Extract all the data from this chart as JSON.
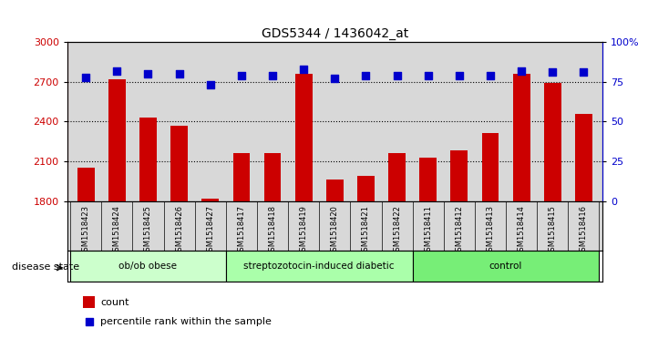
{
  "title": "GDS5344 / 1436042_at",
  "samples": [
    "GSM1518423",
    "GSM1518424",
    "GSM1518425",
    "GSM1518426",
    "GSM1518427",
    "GSM1518417",
    "GSM1518418",
    "GSM1518419",
    "GSM1518420",
    "GSM1518421",
    "GSM1518422",
    "GSM1518411",
    "GSM1518412",
    "GSM1518413",
    "GSM1518414",
    "GSM1518415",
    "GSM1518416"
  ],
  "counts": [
    2050,
    2720,
    2430,
    2370,
    1820,
    2160,
    2160,
    2760,
    1960,
    1990,
    2160,
    2130,
    2180,
    2310,
    2760,
    2690,
    2460
  ],
  "percentile_ranks": [
    78,
    82,
    80,
    80,
    73,
    79,
    79,
    83,
    77,
    79,
    79,
    79,
    79,
    79,
    82,
    81,
    81
  ],
  "groups": [
    {
      "label": "ob/ob obese",
      "start": 0,
      "end": 5,
      "color": "#ccffcc"
    },
    {
      "label": "streptozotocin-induced diabetic",
      "start": 5,
      "end": 11,
      "color": "#aaffaa"
    },
    {
      "label": "control",
      "start": 11,
      "end": 17,
      "color": "#77ee77"
    }
  ],
  "ylim_left": [
    1800,
    3000
  ],
  "ylim_right": [
    0,
    100
  ],
  "yticks_left": [
    1800,
    2100,
    2400,
    2700,
    3000
  ],
  "yticks_right": [
    0,
    25,
    50,
    75,
    100
  ],
  "bar_color": "#cc0000",
  "dot_color": "#0000cc",
  "bg_color": "#d8d8d8",
  "xlabel_bg": "#d8d8d8",
  "disease_state_label": "disease state",
  "legend_count_label": "count",
  "legend_percentile_label": "percentile rank within the sample"
}
